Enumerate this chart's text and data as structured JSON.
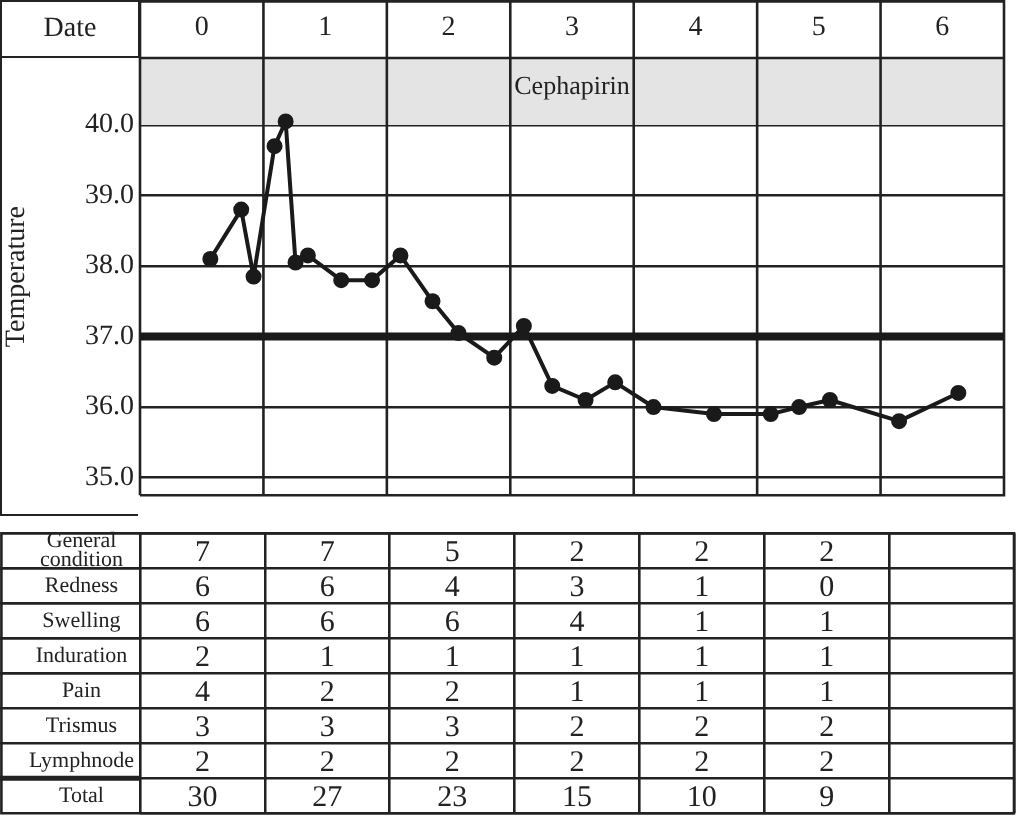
{
  "chart_data": [
    {
      "type": "line",
      "xlabel": "Date",
      "ylabel": "Temperature",
      "color": "#1a1a1a",
      "marker": "circle",
      "line_style": "solid",
      "grid": "y",
      "legend": false,
      "x": [
        0.07,
        0.32,
        0.42,
        0.59,
        0.68,
        0.76,
        0.86,
        1.13,
        1.38,
        1.61,
        1.87,
        2.08,
        2.37,
        2.61,
        2.84,
        3.11,
        3.35,
        3.66,
        4.15,
        4.61,
        4.84,
        5.09,
        5.65,
        6.13
      ],
      "values": [
        38.1,
        38.8,
        37.85,
        39.7,
        40.05,
        38.05,
        38.15,
        37.8,
        37.8,
        38.15,
        37.5,
        37.05,
        36.7,
        37.15,
        36.3,
        36.1,
        36.35,
        36.0,
        35.9,
        35.9,
        36.0,
        36.1,
        35.8,
        36.2
      ],
      "xlim": [
        -0.5,
        6.5
      ],
      "xticks": [
        0,
        1,
        2,
        3,
        4,
        5,
        6
      ],
      "ylim": [
        34.75,
        40.95
      ],
      "yticks": [
        {
          "value": 35,
          "label": "35.0"
        },
        {
          "value": 36,
          "label": "36.0"
        },
        {
          "value": 37,
          "label": "37.0"
        },
        {
          "value": 38,
          "label": "38.0"
        },
        {
          "value": 39,
          "label": "39.0"
        },
        {
          "value": 40,
          "label": "40.0"
        }
      ],
      "ref_lines": [
        {
          "axis": "y",
          "value": 37,
          "color": "#1a1a1a"
        }
      ],
      "bands": [
        {
          "axis": "y",
          "from": 40,
          "to": 40.95,
          "label": "Cephapirin",
          "color": "#e4e4e4"
        }
      ]
    },
    {
      "type": "heatmap",
      "data_labels": true,
      "categories": [
        null,
        null,
        null,
        null,
        null,
        null,
        null
      ],
      "y_categories": [
        "General condition",
        "Redness",
        "Swelling",
        "Induration",
        "Pain",
        "Trismus",
        "Lymphnode",
        "Total"
      ],
      "cells": [
        [
          7,
          7,
          5,
          2,
          2,
          2,
          null
        ],
        [
          6,
          6,
          4,
          3,
          1,
          0,
          null
        ],
        [
          6,
          6,
          6,
          4,
          1,
          1,
          null
        ],
        [
          2,
          1,
          1,
          1,
          1,
          1,
          null
        ],
        [
          4,
          2,
          2,
          1,
          1,
          1,
          null
        ],
        [
          3,
          3,
          3,
          2,
          2,
          2,
          null
        ],
        [
          2,
          2,
          2,
          2,
          2,
          2,
          null
        ],
        [
          30,
          27,
          23,
          15,
          10,
          9,
          null
        ]
      ]
    }
  ]
}
